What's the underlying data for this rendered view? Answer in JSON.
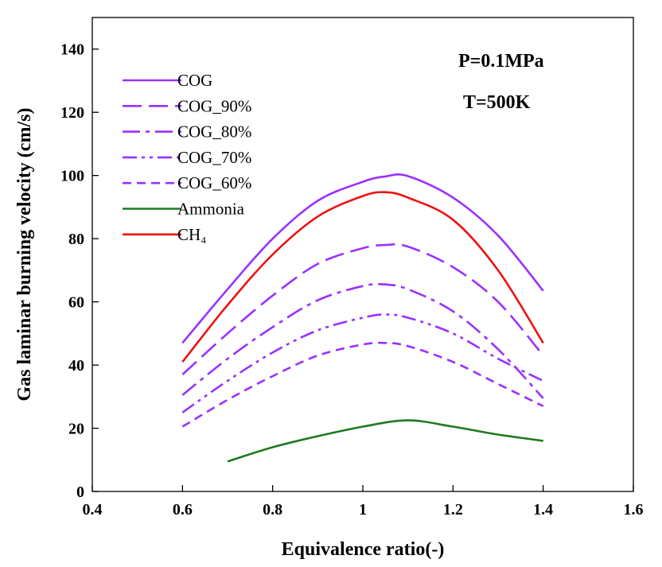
{
  "chart_data": {
    "type": "line",
    "title": "",
    "xlabel": "Equivalence ratio(-)",
    "ylabel": "Gas laminar burning velocity (cm/s)",
    "xlim": [
      0.4,
      1.6
    ],
    "ylim": [
      0,
      150
    ],
    "xticks": [
      0.4,
      0.6,
      0.8,
      1,
      1.2,
      1.4,
      1.6
    ],
    "xtick_labels": [
      "0.4",
      "0.6",
      "0.8",
      "1",
      "1.2",
      "1.4",
      "1.6"
    ],
    "yticks": [
      0,
      20,
      40,
      60,
      80,
      100,
      120,
      140
    ],
    "ytick_labels": [
      "0",
      "20",
      "40",
      "60",
      "80",
      "100",
      "120",
      "140"
    ],
    "grid": false,
    "legend_position": "top-left",
    "annotations": [
      "P=0.1MPa",
      "T=500K"
    ],
    "series": [
      {
        "name": "COG",
        "color": "#9b30ff",
        "dash": "solid",
        "x": [
          0.6,
          0.7,
          0.8,
          0.9,
          1.0,
          1.05,
          1.1,
          1.2,
          1.3,
          1.4
        ],
        "y": [
          47,
          64,
          80,
          92,
          98,
          99.7,
          99.8,
          93,
          81,
          63.5
        ]
      },
      {
        "name": "COG_90%",
        "color": "#9b30ff",
        "dash": "long-dash",
        "x": [
          0.6,
          0.7,
          0.8,
          0.9,
          1.0,
          1.05,
          1.1,
          1.2,
          1.3,
          1.4
        ],
        "y": [
          37,
          50,
          62,
          72,
          77,
          78,
          77.5,
          71,
          60,
          43
        ]
      },
      {
        "name": "COG_80%",
        "color": "#9b30ff",
        "dash": "dash-dot",
        "x": [
          0.6,
          0.7,
          0.8,
          0.9,
          1.0,
          1.05,
          1.1,
          1.2,
          1.3,
          1.4
        ],
        "y": [
          30.5,
          42,
          52,
          60.5,
          65,
          65.5,
          64,
          57,
          45,
          29.5
        ]
      },
      {
        "name": "COG_70%",
        "color": "#9b30ff",
        "dash": "dash-dot-dot",
        "x": [
          0.6,
          0.7,
          0.8,
          0.9,
          1.0,
          1.05,
          1.1,
          1.2,
          1.3,
          1.4
        ],
        "y": [
          25,
          35,
          44,
          51,
          55,
          56,
          55,
          50,
          42,
          35
        ]
      },
      {
        "name": "COG_60%",
        "color": "#9b30ff",
        "dash": "short-dash",
        "x": [
          0.6,
          0.7,
          0.8,
          0.9,
          1.0,
          1.05,
          1.1,
          1.2,
          1.3,
          1.4
        ],
        "y": [
          20.5,
          29,
          36.5,
          43,
          46.5,
          47,
          46,
          41,
          34,
          27
        ]
      },
      {
        "name": "Ammonia",
        "color": "#1e7a1e",
        "dash": "solid",
        "x": [
          0.7,
          0.8,
          0.9,
          1.0,
          1.1,
          1.2,
          1.3,
          1.4
        ],
        "y": [
          9.5,
          14,
          17.5,
          20.5,
          22.5,
          20.5,
          18,
          16
        ]
      },
      {
        "name": "CH₄",
        "color": "#ee1111",
        "dash": "solid",
        "x": [
          0.6,
          0.7,
          0.8,
          0.9,
          1.0,
          1.05,
          1.1,
          1.2,
          1.3,
          1.4
        ],
        "y": [
          41,
          59,
          75,
          87,
          93.5,
          94.7,
          93,
          86,
          70,
          47
        ]
      }
    ]
  }
}
